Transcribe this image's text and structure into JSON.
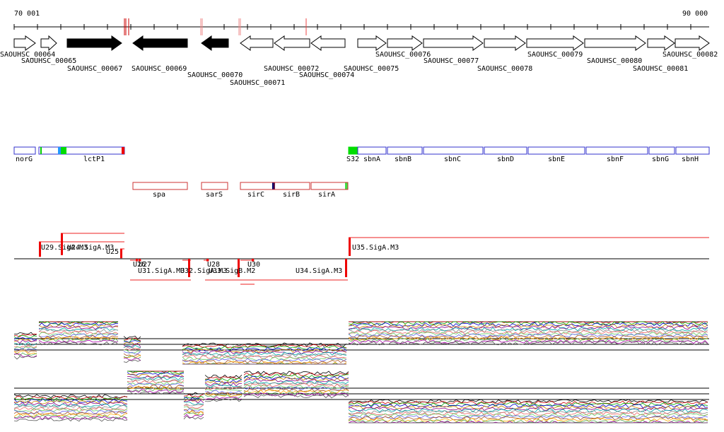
{
  "ruler": {
    "start": "70 001",
    "end": "90 000"
  },
  "genes": [
    "SAOUHSC_00064",
    "SAOUHSC_00065",
    "SAOUHSC_00067",
    "SAOUHSC_00069",
    "SAOUHSC_00070",
    "SAOUHSC_00071",
    "SAOUHSC_00072",
    "SAOUHSC_00074",
    "SAOUHSC_00075",
    "SAOUHSC_00076",
    "SAOUHSC_00077",
    "SAOUHSC_00078",
    "SAOUHSC_00079",
    "SAOUHSC_00080",
    "SAOUHSC_00081",
    "SAOUHSC_00082"
  ],
  "operons": [
    "norG",
    "lctP1",
    "S32",
    "sbnA",
    "sbnB",
    "sbnC",
    "sbnD",
    "sbnE",
    "sbnF",
    "sbnG",
    "sbnH"
  ],
  "operons2": [
    "spa",
    "sarS",
    "sirC",
    "sirB",
    "sirA"
  ],
  "transcription_units": [
    "U29.SigA.M3",
    "U24.SigA.M3",
    "U25",
    "U26",
    "U27",
    "U31.SigA.M3",
    "U32.SigA.M3",
    "U28",
    "U33.SigB.M2",
    "U30",
    "U34.SigA.M3",
    "U35.SigA.M3"
  ]
}
